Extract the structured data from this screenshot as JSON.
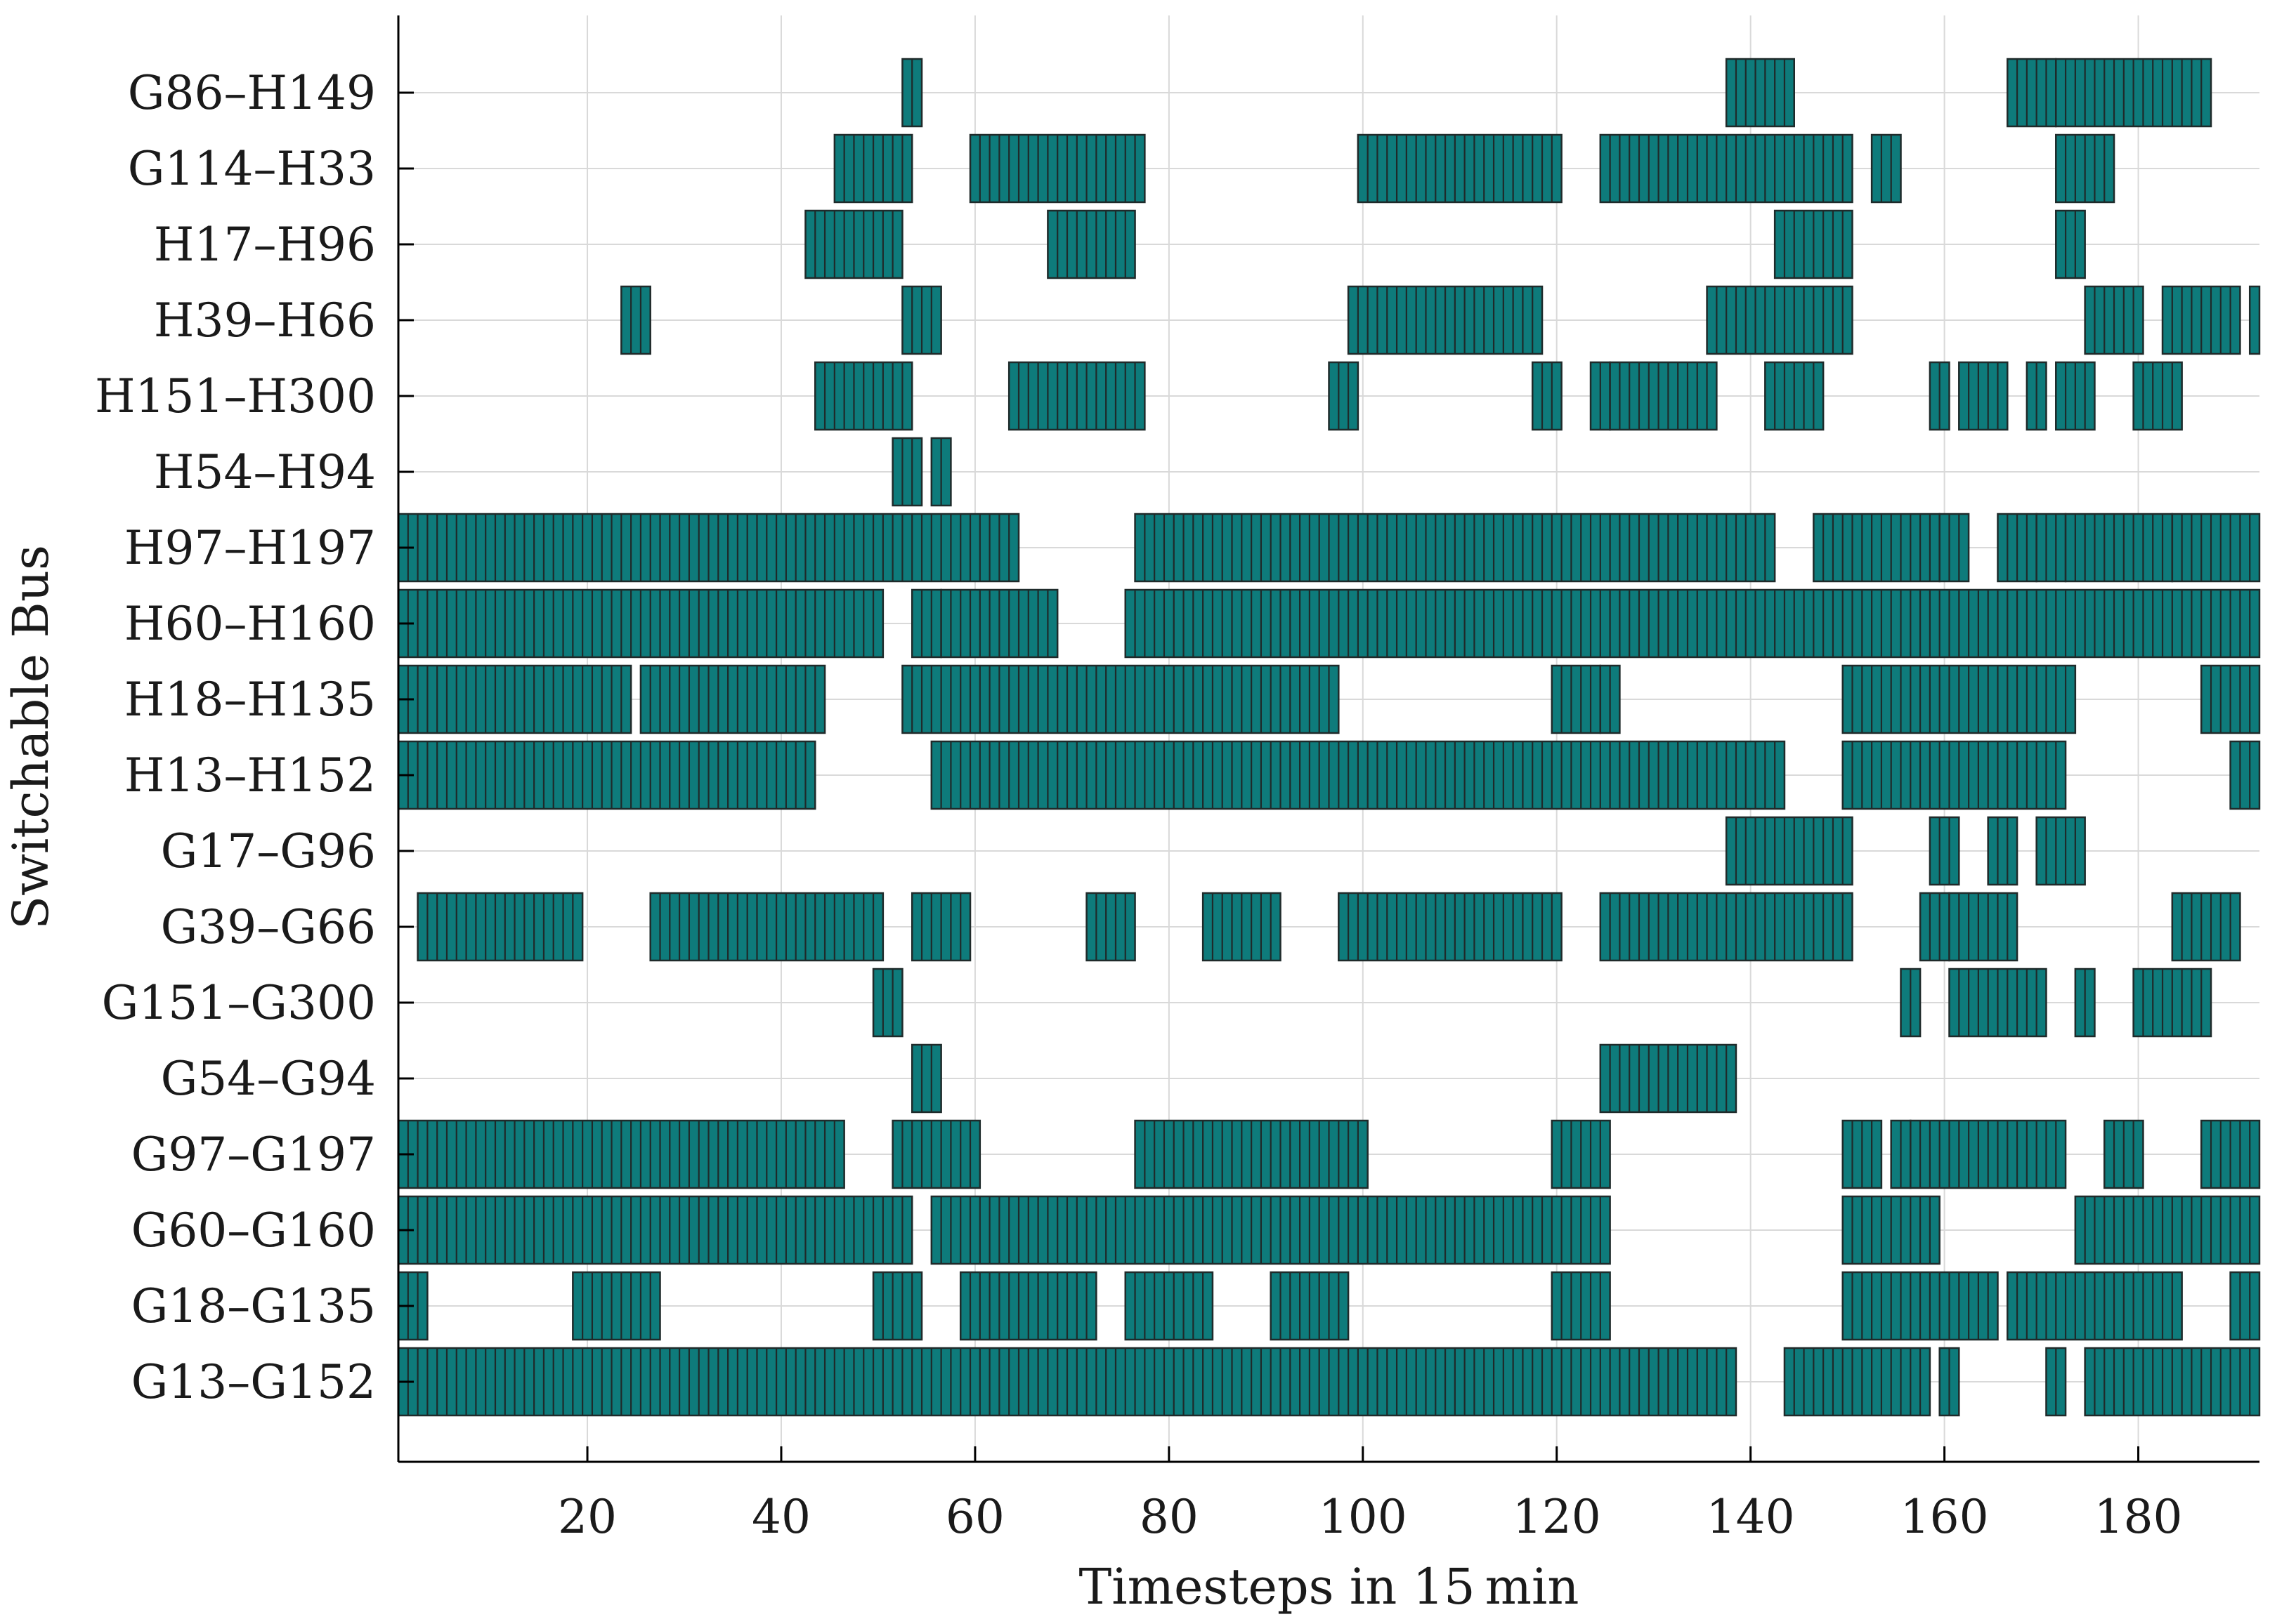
{
  "chart_data": {
    "type": "gantt",
    "xlabel": "Timesteps in 15 min",
    "ylabel": "Switchable Bus",
    "xlim": [
      1,
      192
    ],
    "x_ticks": [
      20,
      40,
      60,
      80,
      100,
      120,
      140,
      160,
      180
    ],
    "grid": true,
    "colors": {
      "bar_fill": "#0e7b7b",
      "bar_edge": "#1f2a2a",
      "grid": "#d9d9d9",
      "axis": "#000000"
    },
    "categories": [
      "G86–H149",
      "G114–H33",
      "H17–H96",
      "H39–H66",
      "H151–H300",
      "H54–H94",
      "H97–H197",
      "H60–H160",
      "H18–H135",
      "H13–H152",
      "G17–G96",
      "G39–G66",
      "G151–G300",
      "G54–G94",
      "G97–G197",
      "G60–G160",
      "G18–G135",
      "G13–G152"
    ],
    "intervals": [
      [
        [
          53,
          54
        ],
        [
          138,
          144
        ],
        [
          167,
          171
        ],
        [
          172,
          187
        ]
      ],
      [
        [
          46,
          53
        ],
        [
          60,
          77
        ],
        [
          100,
          120
        ],
        [
          125,
          150
        ],
        [
          153,
          155
        ],
        [
          172,
          177
        ]
      ],
      [
        [
          43,
          52
        ],
        [
          68,
          76
        ],
        [
          143,
          150
        ],
        [
          172,
          174
        ]
      ],
      [
        [
          24,
          26
        ],
        [
          53,
          56
        ],
        [
          99,
          118
        ],
        [
          136,
          150
        ],
        [
          175,
          180
        ],
        [
          183,
          190
        ],
        [
          192,
          192
        ]
      ],
      [
        [
          44,
          53
        ],
        [
          64,
          77
        ],
        [
          97,
          99
        ],
        [
          118,
          120
        ],
        [
          124,
          125
        ],
        [
          126,
          136
        ],
        [
          142,
          147
        ],
        [
          159,
          160
        ],
        [
          162,
          166
        ],
        [
          169,
          170
        ],
        [
          172,
          175
        ],
        [
          180,
          184
        ]
      ],
      [
        [
          52,
          54
        ],
        [
          56,
          57
        ]
      ],
      [
        [
          1,
          64
        ],
        [
          77,
          142
        ],
        [
          147,
          159
        ],
        [
          160,
          162
        ],
        [
          166,
          169
        ],
        [
          170,
          172
        ],
        [
          173,
          183
        ],
        [
          184,
          192
        ]
      ],
      [
        [
          1,
          50
        ],
        [
          54,
          56
        ],
        [
          57,
          68
        ],
        [
          76,
          192
        ]
      ],
      [
        [
          1,
          24
        ],
        [
          26,
          44
        ],
        [
          53,
          97
        ],
        [
          120,
          124
        ],
        [
          125,
          126
        ],
        [
          150,
          173
        ],
        [
          187,
          192
        ]
      ],
      [
        [
          1,
          43
        ],
        [
          56,
          143
        ],
        [
          150,
          172
        ],
        [
          190,
          192
        ]
      ],
      [
        [
          138,
          150
        ],
        [
          159,
          161
        ],
        [
          165,
          167
        ],
        [
          170,
          174
        ]
      ],
      [
        [
          3,
          19
        ],
        [
          27,
          50
        ],
        [
          54,
          59
        ],
        [
          72,
          76
        ],
        [
          84,
          91
        ],
        [
          98,
          120
        ],
        [
          125,
          150
        ],
        [
          158,
          160
        ],
        [
          161,
          167
        ],
        [
          184,
          190
        ]
      ],
      [
        [
          50,
          52
        ],
        [
          156,
          157
        ],
        [
          161,
          170
        ],
        [
          174,
          175
        ],
        [
          180,
          187
        ]
      ],
      [
        [
          54,
          56
        ],
        [
          125,
          138
        ]
      ],
      [
        [
          1,
          46
        ],
        [
          52,
          60
        ],
        [
          77,
          100
        ],
        [
          120,
          125
        ],
        [
          150,
          153
        ],
        [
          155,
          156
        ],
        [
          157,
          172
        ],
        [
          177,
          180
        ],
        [
          187,
          192
        ]
      ],
      [
        [
          1,
          53
        ],
        [
          56,
          125
        ],
        [
          150,
          159
        ],
        [
          174,
          192
        ]
      ],
      [
        [
          1,
          3
        ],
        [
          19,
          27
        ],
        [
          50,
          54
        ],
        [
          59,
          72
        ],
        [
          76,
          84
        ],
        [
          91,
          98
        ],
        [
          120,
          125
        ],
        [
          150,
          165
        ],
        [
          167,
          184
        ],
        [
          190,
          192
        ]
      ],
      [
        [
          1,
          138
        ],
        [
          144,
          158
        ],
        [
          160,
          161
        ],
        [
          171,
          172
        ],
        [
          175,
          192
        ]
      ]
    ]
  }
}
